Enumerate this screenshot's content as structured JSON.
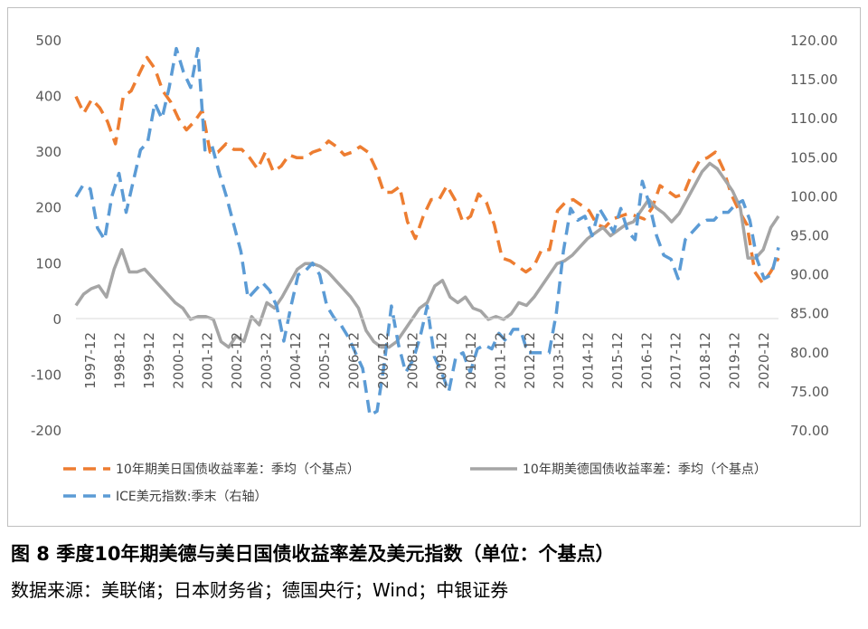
{
  "caption": "图 8   季度10年期美德与美日国债收益率差及美元指数（单位：个基点）",
  "source": "数据来源：美联储；日本财务省；德国央行；Wind；中银证券",
  "chart_data": {
    "type": "line",
    "title": "",
    "xlabel": "",
    "ylabel": "",
    "ylim": [
      -200,
      500
    ],
    "y2lim": [
      70,
      120
    ],
    "yticks": [
      "500",
      "400",
      "300",
      "200",
      "100",
      "0",
      "-100",
      "-200"
    ],
    "y2ticks": [
      "120.00",
      "115.00",
      "110.00",
      "105.00",
      "100.00",
      "95.00",
      "90.00",
      "85.00",
      "80.00",
      "75.00",
      "70.00"
    ],
    "xtick_labels": [
      "1997-12",
      "1998-12",
      "1999-12",
      "2000-12",
      "2001-12",
      "2002-12",
      "2003-12",
      "2004-12",
      "2005-12",
      "2006-12",
      "2007-12",
      "2008-12",
      "2009-12",
      "2010-12",
      "2011-12",
      "2012-12",
      "2013-12",
      "2014-12",
      "2015-12",
      "2016-12",
      "2017-12",
      "2018-12",
      "2019-12",
      "2020-12"
    ],
    "x_start": "1997-12",
    "x_end": "2021-03",
    "legend_position": "bottom",
    "grid": false,
    "series": [
      {
        "name": "10年期美日国债收益率差：季均（个基点）",
        "axis": "left",
        "color": "#ED7D31",
        "dash": "dashed",
        "values": [
          400,
          370,
          395,
          380,
          355,
          315,
          400,
          410,
          440,
          470,
          450,
          410,
          390,
          360,
          340,
          355,
          375,
          300,
          300,
          315,
          305,
          305,
          290,
          270,
          300,
          265,
          275,
          295,
          290,
          290,
          300,
          305,
          320,
          310,
          295,
          300,
          310,
          300,
          270,
          228,
          228,
          238,
          175,
          145,
          185,
          215,
          215,
          240,
          215,
          175,
          185,
          225,
          210,
          170,
          110,
          105,
          95,
          85,
          95,
          125,
          125,
          195,
          210,
          215,
          205,
          195,
          170,
          165,
          180,
          185,
          190,
          185,
          180,
          200,
          240,
          230,
          220,
          225,
          260,
          285,
          290,
          300,
          270,
          225,
          195,
          170,
          85,
          65,
          85,
          110
        ]
      },
      {
        "name": "10年期美德国债收益率差：季均（个基点）",
        "axis": "left",
        "color": "#A5A5A5",
        "dash": "solid",
        "values": [
          25,
          45,
          55,
          60,
          40,
          90,
          125,
          85,
          85,
          90,
          75,
          60,
          45,
          30,
          20,
          0,
          5,
          5,
          0,
          -40,
          -50,
          -30,
          -40,
          5,
          -10,
          30,
          20,
          40,
          65,
          90,
          100,
          100,
          95,
          85,
          70,
          55,
          40,
          20,
          -20,
          -40,
          -50,
          -50,
          -40,
          -20,
          0,
          20,
          30,
          60,
          70,
          40,
          30,
          40,
          20,
          15,
          0,
          5,
          0,
          10,
          30,
          25,
          40,
          60,
          80,
          100,
          105,
          115,
          130,
          145,
          155,
          165,
          150,
          160,
          170,
          175,
          195,
          215,
          200,
          190,
          175,
          190,
          215,
          240,
          265,
          280,
          270,
          250,
          230,
          200,
          110,
          110,
          125,
          165,
          185
        ]
      },
      {
        "name": "ICE美元指数:季末（右轴）",
        "axis": "right",
        "color": "#5B9BD5",
        "dash": "dashed",
        "values": [
          100,
          101.5,
          101,
          96,
          94.5,
          100,
          103,
          98,
          102,
          106,
          107,
          112,
          110,
          114,
          119,
          116,
          114,
          119,
          106,
          106.5,
          103,
          100,
          96.5,
          93,
          87,
          88,
          89,
          88,
          86,
          81.5,
          86,
          90,
          90.5,
          91.5,
          90,
          86,
          84.5,
          83.5,
          82,
          80,
          78,
          72,
          72.5,
          78.5,
          86,
          81,
          77.5,
          79,
          82,
          86,
          79.5,
          77.5,
          75,
          79.5,
          80,
          77.5,
          80.5,
          81,
          80.5,
          82.5,
          81.5,
          83,
          83,
          80,
          80,
          80,
          80,
          85,
          93,
          98.5,
          97,
          97.5,
          95,
          98.5,
          97,
          95.5,
          98.5,
          95.5,
          94.5,
          102,
          99,
          95,
          92.5,
          92,
          89.5,
          94.5,
          95.5,
          96.5,
          97,
          97,
          98,
          98,
          99,
          99.5,
          97,
          92,
          89.5,
          90,
          93.5
        ]
      }
    ]
  }
}
